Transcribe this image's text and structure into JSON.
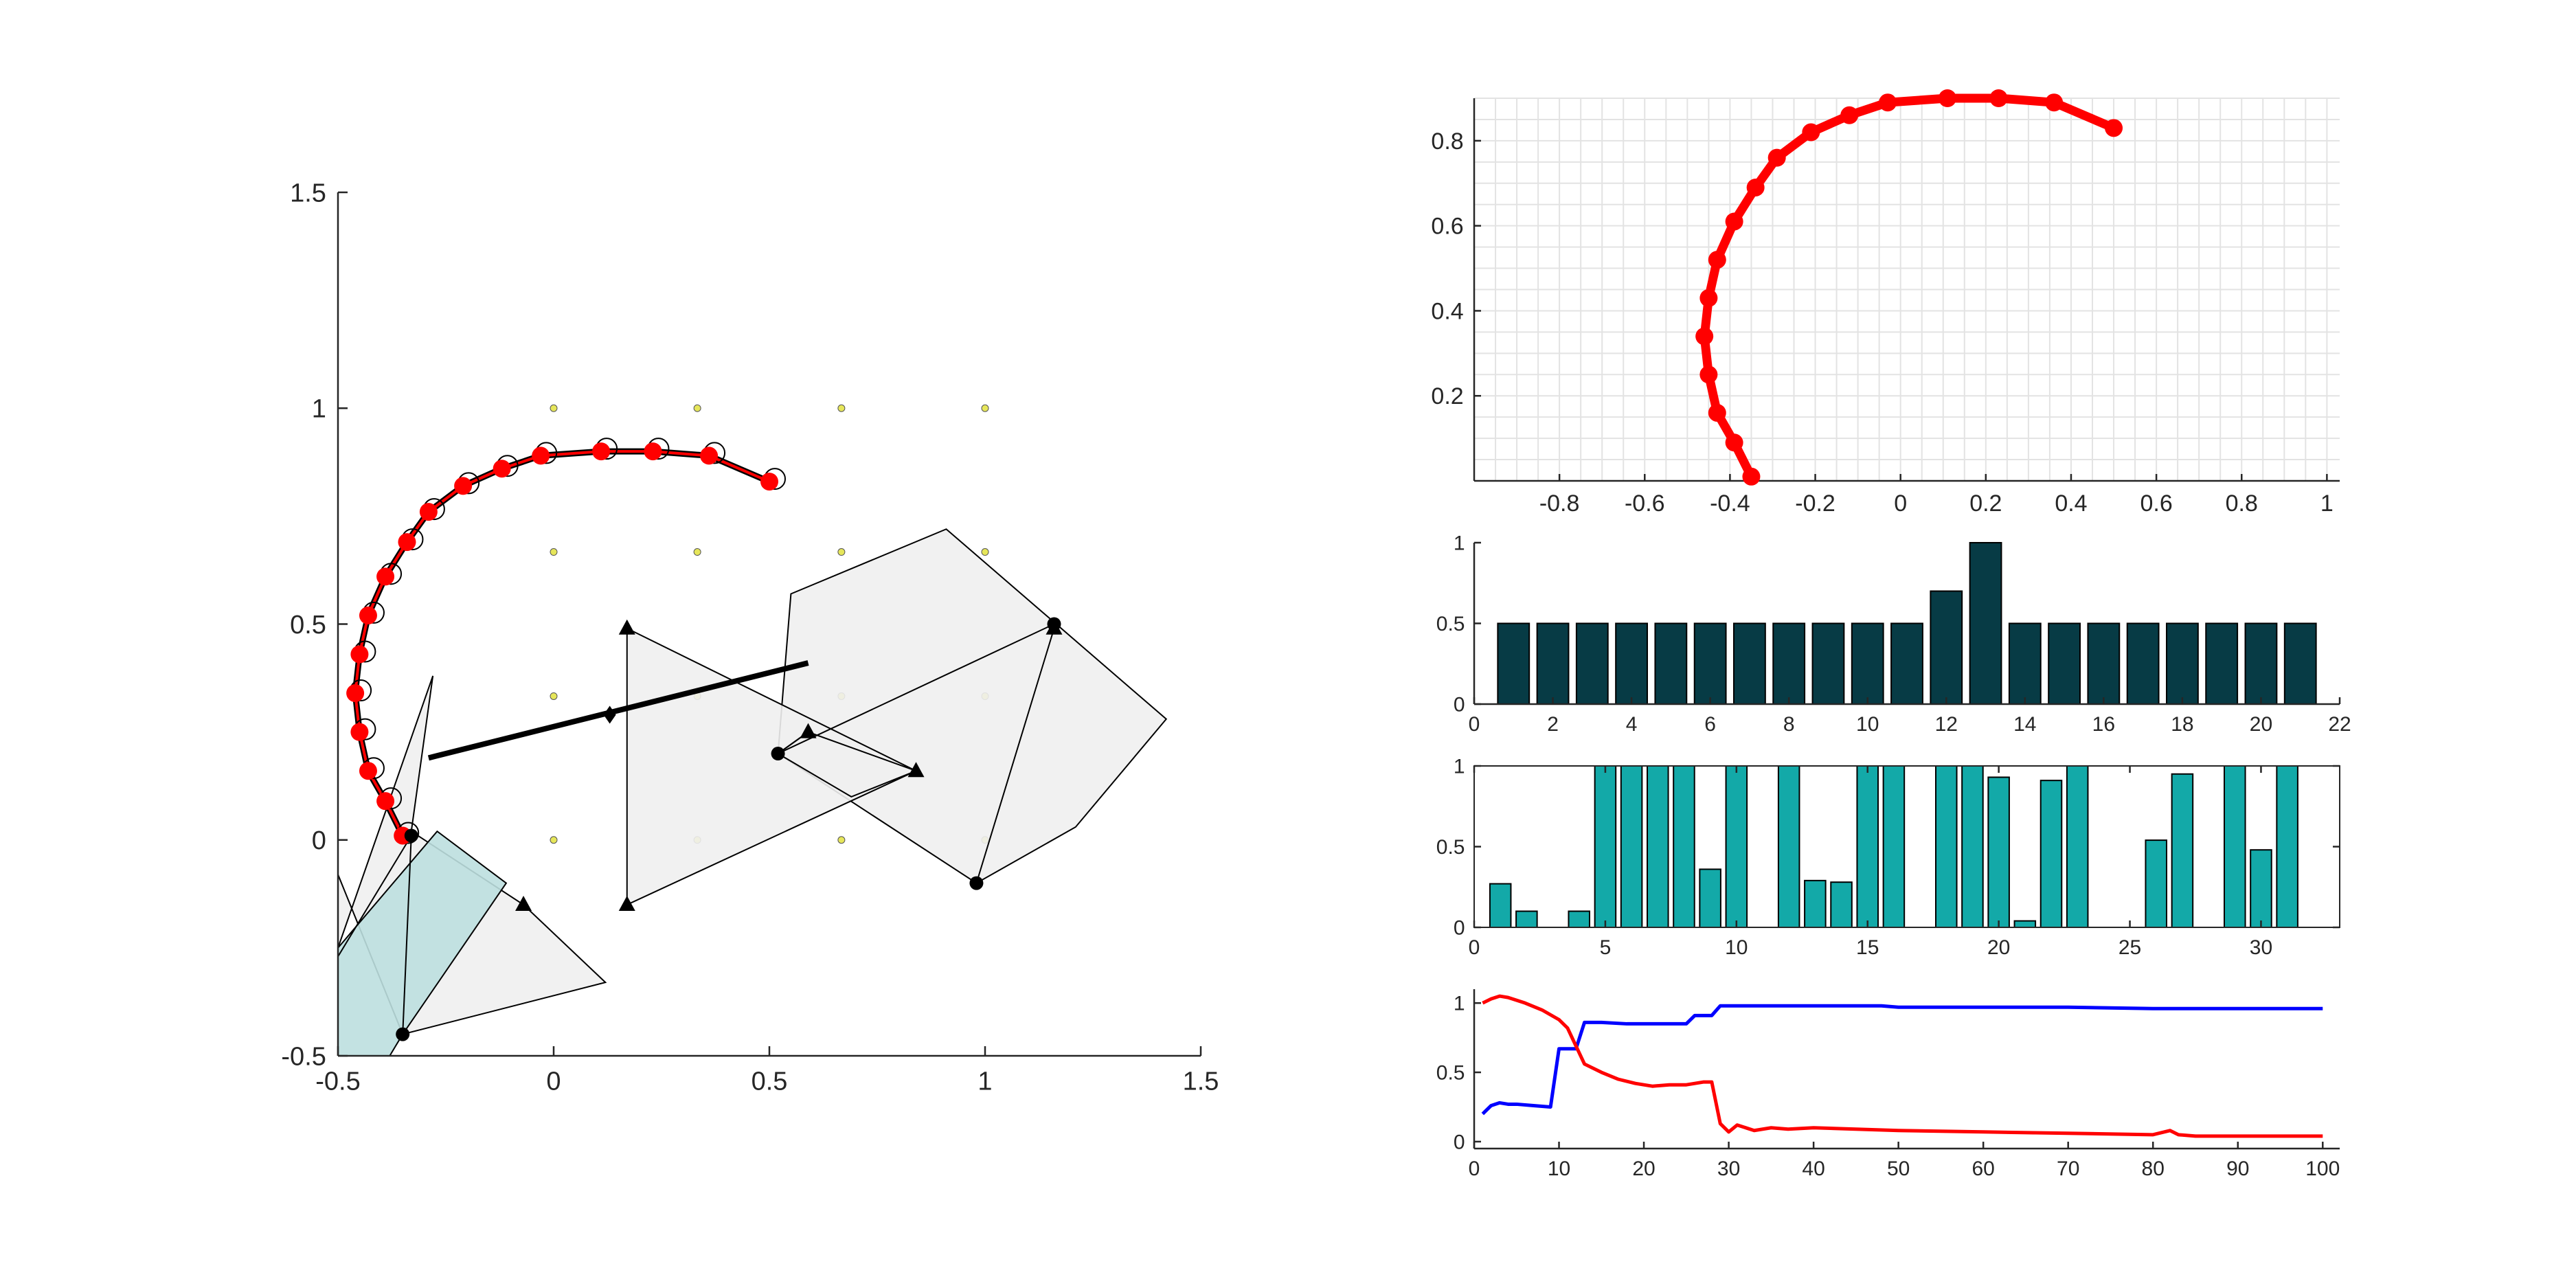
{
  "chart_data": [
    {
      "type": "scatter",
      "xlim": [
        -0.5,
        1.5
      ],
      "ylim": [
        -0.5,
        1.5
      ],
      "xticks": [
        -0.5,
        0,
        0.5,
        1,
        1.5
      ],
      "yticks": [
        -0.5,
        0,
        0.5,
        1,
        1.5
      ],
      "xtick_labels": [
        "-0.5",
        "0",
        "0.5",
        "1",
        "1.5"
      ],
      "ytick_labels": [
        "-0.5",
        "0",
        "0.5",
        "1",
        "1.5"
      ],
      "grid": false,
      "colors": {
        "path": "#ff0000",
        "marks": "#000000",
        "fill_light": "#efefef",
        "fill_teal": "#bcdfdf",
        "grid_dots": "#e6e65a"
      },
      "trajectory": {
        "x": [
          -0.35,
          -0.39,
          -0.43,
          -0.45,
          -0.46,
          -0.45,
          -0.43,
          -0.39,
          -0.34,
          -0.29,
          -0.21,
          -0.12,
          -0.03,
          0.11,
          0.23,
          0.36,
          0.5
        ],
        "y": [
          0.01,
          0.09,
          0.16,
          0.25,
          0.34,
          0.43,
          0.52,
          0.61,
          0.69,
          0.76,
          0.82,
          0.86,
          0.89,
          0.9,
          0.9,
          0.89,
          0.83
        ]
      },
      "grid_dots": {
        "x": [
          0,
          0.333,
          0.667,
          1
        ],
        "y": [
          0,
          0.333,
          0.667,
          1
        ]
      },
      "polygons": [
        {
          "fill": "light",
          "points": [
            [
              0.55,
              0.57
            ],
            [
              0.91,
              0.72
            ],
            [
              1.42,
              0.28
            ],
            [
              1.21,
              0.03
            ],
            [
              0.98,
              -0.1
            ],
            [
              0.52,
              0.2
            ]
          ]
        },
        {
          "fill": "light",
          "points": [
            [
              0.17,
              0.49
            ],
            [
              0.84,
              0.16
            ],
            [
              0.17,
              -0.15
            ]
          ]
        },
        {
          "fill": "light",
          "points": [
            [
              0.52,
              0.2
            ],
            [
              0.59,
              0.25
            ],
            [
              0.84,
              0.16
            ],
            [
              0.69,
              0.1
            ]
          ]
        },
        {
          "fill": "light",
          "points": [
            [
              -0.35,
              -0.45
            ],
            [
              -0.5,
              -0.08
            ],
            [
              -0.5,
              -0.25
            ],
            [
              -0.28,
              0.38
            ],
            [
              -0.33,
              0.02
            ],
            [
              -0.07,
              -0.15
            ],
            [
              0.12,
              -0.33
            ]
          ]
        },
        {
          "fill": "teal",
          "points": [
            [
              -0.5,
              -0.5
            ],
            [
              -0.5,
              -0.25
            ],
            [
              -0.27,
              0.02
            ],
            [
              -0.11,
              -0.1
            ],
            [
              -0.35,
              -0.45
            ],
            [
              -0.38,
              -0.5
            ]
          ]
        }
      ],
      "segments": [
        {
          "width": "thick",
          "points": [
            [
              -0.29,
              0.19
            ],
            [
              0.59,
              0.41
            ]
          ]
        },
        {
          "width": "thin",
          "points": [
            [
              0.98,
              -0.1
            ],
            [
              1.16,
              0.49
            ]
          ]
        },
        {
          "width": "thin",
          "points": [
            [
              0.52,
              0.2
            ],
            [
              1.16,
              0.5
            ]
          ]
        },
        {
          "width": "thin",
          "points": [
            [
              0.52,
              0.2
            ],
            [
              0.59,
              0.25
            ]
          ]
        },
        {
          "width": "thin",
          "points": [
            [
              -0.35,
              -0.45
            ],
            [
              -0.33,
              0.01
            ]
          ]
        },
        {
          "width": "thin",
          "points": [
            [
              -0.5,
              -0.27
            ],
            [
              -0.33,
              0.01
            ]
          ]
        }
      ],
      "markers": [
        {
          "shape": "circle",
          "x": 0.52,
          "y": 0.2
        },
        {
          "shape": "circle",
          "x": 1.16,
          "y": 0.5
        },
        {
          "shape": "circle",
          "x": 0.98,
          "y": -0.1
        },
        {
          "shape": "circle",
          "x": -0.33,
          "y": 0.01
        },
        {
          "shape": "circle",
          "x": -0.35,
          "y": -0.45
        },
        {
          "shape": "triangle",
          "x": 0.17,
          "y": 0.49
        },
        {
          "shape": "triangle",
          "x": 0.17,
          "y": -0.15
        },
        {
          "shape": "triangle",
          "x": 0.84,
          "y": 0.16
        },
        {
          "shape": "triangle",
          "x": 0.59,
          "y": 0.25
        },
        {
          "shape": "triangle",
          "x": 1.16,
          "y": 0.49
        },
        {
          "shape": "triangle",
          "x": -0.07,
          "y": -0.15
        },
        {
          "shape": "diamond",
          "x": 0.13,
          "y": 0.29
        }
      ]
    },
    {
      "type": "line",
      "xlim": [
        -1,
        1.03
      ],
      "ylim": [
        0,
        0.9
      ],
      "xticks": [
        -0.8,
        -0.6,
        -0.4,
        -0.2,
        0,
        0.2,
        0.4,
        0.6,
        0.8,
        1
      ],
      "yticks": [
        0.2,
        0.4,
        0.6,
        0.8
      ],
      "xtick_labels": [
        "-0.8",
        "-0.6",
        "-0.4",
        "-0.2",
        "0",
        "0.2",
        "0.4",
        "0.6",
        "0.8",
        "1"
      ],
      "ytick_labels": [
        "0.2",
        "0.4",
        "0.6",
        "0.8"
      ],
      "grid": true,
      "color": "#ff0000",
      "x": [
        -0.35,
        -0.39,
        -0.43,
        -0.45,
        -0.46,
        -0.45,
        -0.43,
        -0.39,
        -0.34,
        -0.29,
        -0.21,
        -0.12,
        -0.03,
        0.11,
        0.23,
        0.36,
        0.5
      ],
      "y": [
        0.01,
        0.09,
        0.16,
        0.25,
        0.34,
        0.43,
        0.52,
        0.61,
        0.69,
        0.76,
        0.82,
        0.86,
        0.89,
        0.9,
        0.9,
        0.89,
        0.83
      ]
    },
    {
      "type": "bar",
      "xlim": [
        0,
        22
      ],
      "ylim": [
        0,
        1
      ],
      "xticks": [
        0,
        2,
        4,
        6,
        8,
        10,
        12,
        14,
        16,
        18,
        20,
        22
      ],
      "yticks": [
        0,
        0.5,
        1
      ],
      "xtick_labels": [
        "0",
        "2",
        "4",
        "6",
        "8",
        "10",
        "12",
        "14",
        "16",
        "18",
        "20",
        "22"
      ],
      "ytick_labels": [
        "0",
        "0.5",
        "1"
      ],
      "color": "#073b45",
      "categories": [
        1,
        2,
        3,
        4,
        5,
        6,
        7,
        8,
        9,
        10,
        11,
        12,
        13,
        14,
        15,
        16,
        17,
        18,
        19,
        20,
        21
      ],
      "values": [
        0.5,
        0.5,
        0.5,
        0.5,
        0.5,
        0.5,
        0.5,
        0.5,
        0.5,
        0.5,
        0.5,
        0.7,
        1.0,
        0.5,
        0.5,
        0.5,
        0.5,
        0.5,
        0.5,
        0.5,
        0.5
      ]
    },
    {
      "type": "bar",
      "xlim": [
        0,
        33
      ],
      "ylim": [
        0,
        1
      ],
      "xticks": [
        0,
        5,
        10,
        15,
        20,
        25,
        30
      ],
      "yticks": [
        0,
        0.5,
        1
      ],
      "xtick_labels": [
        "0",
        "5",
        "10",
        "15",
        "20",
        "25",
        "30"
      ],
      "ytick_labels": [
        "0",
        "0.5",
        "1"
      ],
      "color": "#13a9a8",
      "categories": [
        1,
        2,
        3,
        4,
        5,
        6,
        7,
        8,
        9,
        10,
        11,
        12,
        13,
        14,
        15,
        16,
        17,
        18,
        19,
        20,
        21,
        22,
        23,
        24,
        25,
        26,
        27,
        28,
        29,
        30,
        31,
        32
      ],
      "values": [
        0.27,
        0.1,
        0,
        0.1,
        1,
        1,
        1,
        1,
        0.36,
        1,
        0,
        1,
        0.29,
        0.28,
        1,
        1,
        0,
        1,
        1,
        0.93,
        0.04,
        0.91,
        1,
        0,
        0,
        0.54,
        0.95,
        0,
        1,
        0.48,
        1,
        0
      ]
    },
    {
      "type": "line",
      "xlim": [
        0,
        102
      ],
      "ylim": [
        -0.05,
        1.1
      ],
      "xticks": [
        0,
        10,
        20,
        30,
        40,
        50,
        60,
        70,
        80,
        90,
        100
      ],
      "yticks": [
        0,
        0.5,
        1
      ],
      "xtick_labels": [
        "0",
        "10",
        "20",
        "30",
        "40",
        "50",
        "60",
        "70",
        "80",
        "90",
        "100"
      ],
      "ytick_labels": [
        "0",
        "0.5",
        "1"
      ],
      "series": [
        {
          "color": "#0000ff",
          "x": [
            1,
            2,
            3,
            4,
            5,
            7,
            9,
            10,
            12,
            13,
            15,
            18,
            20,
            25,
            26,
            28,
            29,
            35,
            48,
            50,
            55,
            60,
            70,
            80,
            90,
            100
          ],
          "y": [
            0.2,
            0.26,
            0.28,
            0.27,
            0.27,
            0.26,
            0.25,
            0.67,
            0.67,
            0.86,
            0.86,
            0.85,
            0.85,
            0.85,
            0.91,
            0.91,
            0.98,
            0.98,
            0.98,
            0.97,
            0.97,
            0.97,
            0.97,
            0.96,
            0.96,
            0.96
          ]
        },
        {
          "color": "#ff0000",
          "x": [
            1,
            2,
            3,
            4,
            5,
            6,
            8,
            10,
            11,
            13,
            15,
            17,
            19,
            21,
            23,
            25,
            27,
            28,
            29,
            30,
            31,
            33,
            35,
            37,
            40,
            45,
            50,
            60,
            70,
            80,
            82,
            83,
            85,
            90,
            100
          ],
          "y": [
            1.0,
            1.03,
            1.05,
            1.04,
            1.02,
            1.0,
            0.95,
            0.88,
            0.82,
            0.56,
            0.5,
            0.45,
            0.42,
            0.4,
            0.41,
            0.41,
            0.43,
            0.43,
            0.13,
            0.07,
            0.12,
            0.08,
            0.1,
            0.09,
            0.1,
            0.09,
            0.08,
            0.07,
            0.06,
            0.05,
            0.08,
            0.05,
            0.04,
            0.04,
            0.04
          ]
        }
      ]
    }
  ]
}
